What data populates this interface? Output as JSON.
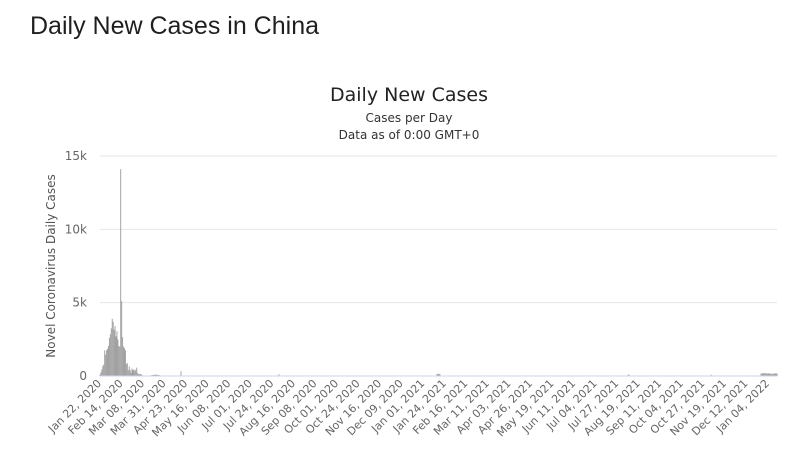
{
  "page": {
    "title": "Daily New Cases in China"
  },
  "chart_data": {
    "type": "bar",
    "title": "Daily New Cases",
    "subtitle": "Cases per Day",
    "subtitle2": "Data as of 0:00 GMT+0",
    "xlabel": "",
    "ylabel": "Novel Coronavirus Daily Cases",
    "ylim": [
      0,
      15000
    ],
    "yticks": [
      0,
      5000,
      10000,
      15000
    ],
    "ytick_labels": [
      "0",
      "5k",
      "10k",
      "15k"
    ],
    "grid": true,
    "legend": "none",
    "bar_color": "#9e9e9e",
    "xstart": "2020-01-22",
    "xend": "2022-01-10",
    "xtick_labels": [
      "Jan 22, 2020",
      "Feb 14, 2020",
      "Mar 08, 2020",
      "Mar 31, 2020",
      "Apr 23, 2020",
      "May 16, 2020",
      "Jun 08, 2020",
      "Jul 01, 2020",
      "Jul 24, 2020",
      "Aug 16, 2020",
      "Sep 08, 2020",
      "Oct 01, 2020",
      "Oct 24, 2020",
      "Nov 16, 2020",
      "Dec 09, 2020",
      "Jan 01, 2021",
      "Jan 24, 2021",
      "Feb 16, 2021",
      "Mar 11, 2021",
      "Apr 03, 2021",
      "Apr 26, 2021",
      "May 19, 2021",
      "Jun 11, 2021",
      "Jul 04, 2021",
      "Jul 27, 2021",
      "Aug 19, 2021",
      "Sep 11, 2021",
      "Oct 04, 2021",
      "Oct 27, 2021",
      "Nov 19, 2021",
      "Dec 12, 2021",
      "Jan 04, 2022"
    ],
    "dates": [
      "2020-01-22",
      "2020-01-23",
      "2020-01-24",
      "2020-01-25",
      "2020-01-26",
      "2020-01-27",
      "2020-01-28",
      "2020-01-29",
      "2020-01-30",
      "2020-01-31",
      "2020-02-01",
      "2020-02-02",
      "2020-02-03",
      "2020-02-04",
      "2020-02-05",
      "2020-02-06",
      "2020-02-07",
      "2020-02-08",
      "2020-02-09",
      "2020-02-10",
      "2020-02-11",
      "2020-02-12",
      "2020-02-13",
      "2020-02-14",
      "2020-02-15",
      "2020-02-16",
      "2020-02-17",
      "2020-02-18",
      "2020-02-19",
      "2020-02-20",
      "2020-02-21",
      "2020-02-22",
      "2020-02-23",
      "2020-02-24",
      "2020-02-25",
      "2020-02-26",
      "2020-02-27",
      "2020-02-28",
      "2020-02-29",
      "2020-03-01",
      "2020-03-02",
      "2020-03-03",
      "2020-03-04",
      "2020-03-05",
      "2020-03-06",
      "2020-03-07",
      "2020-03-08",
      "2020-03-09",
      "2020-03-10",
      "2020-03-11",
      "2020-03-12",
      "2020-03-13",
      "2020-03-14",
      "2020-03-15",
      "2020-03-16",
      "2020-03-17",
      "2020-03-18",
      "2020-03-19",
      "2020-03-20",
      "2020-03-21",
      "2020-03-22",
      "2020-03-23",
      "2020-03-24",
      "2020-03-25",
      "2020-04-17",
      "2020-07-30",
      "2021-01-14",
      "2021-01-15",
      "2021-01-16",
      "2021-01-17",
      "2021-08-05",
      "2021-08-06",
      "2021-11-01",
      "2021-12-24",
      "2021-12-25",
      "2021-12-26",
      "2021-12-27",
      "2021-12-28",
      "2021-12-29",
      "2021-12-30",
      "2021-12-31",
      "2022-01-01",
      "2022-01-02",
      "2022-01-03",
      "2022-01-04",
      "2022-01-05",
      "2022-01-06",
      "2022-01-07",
      "2022-01-08",
      "2022-01-09",
      "2022-01-10"
    ],
    "values": [
      80,
      250,
      450,
      680,
      780,
      1750,
      1450,
      1750,
      1850,
      2050,
      2600,
      2850,
      3250,
      3900,
      3700,
      3150,
      3400,
      2700,
      3050,
      2500,
      2050,
      2000,
      14100,
      5100,
      2650,
      2000,
      1900,
      1750,
      820,
      880,
      400,
      650,
      420,
      220,
      510,
      410,
      440,
      330,
      430,
      570,
      210,
      130,
      120,
      140,
      100,
      45,
      40,
      20,
      25,
      20,
      15,
      20,
      25,
      30,
      40,
      60,
      70,
      80,
      90,
      95,
      85,
      75,
      70,
      65,
      320,
      120,
      140,
      150,
      130,
      120,
      95,
      85,
      90,
      160,
      170,
      180,
      200,
      190,
      185,
      175,
      165,
      170,
      175,
      160,
      150,
      140,
      160,
      170,
      180,
      175,
      165
    ]
  }
}
